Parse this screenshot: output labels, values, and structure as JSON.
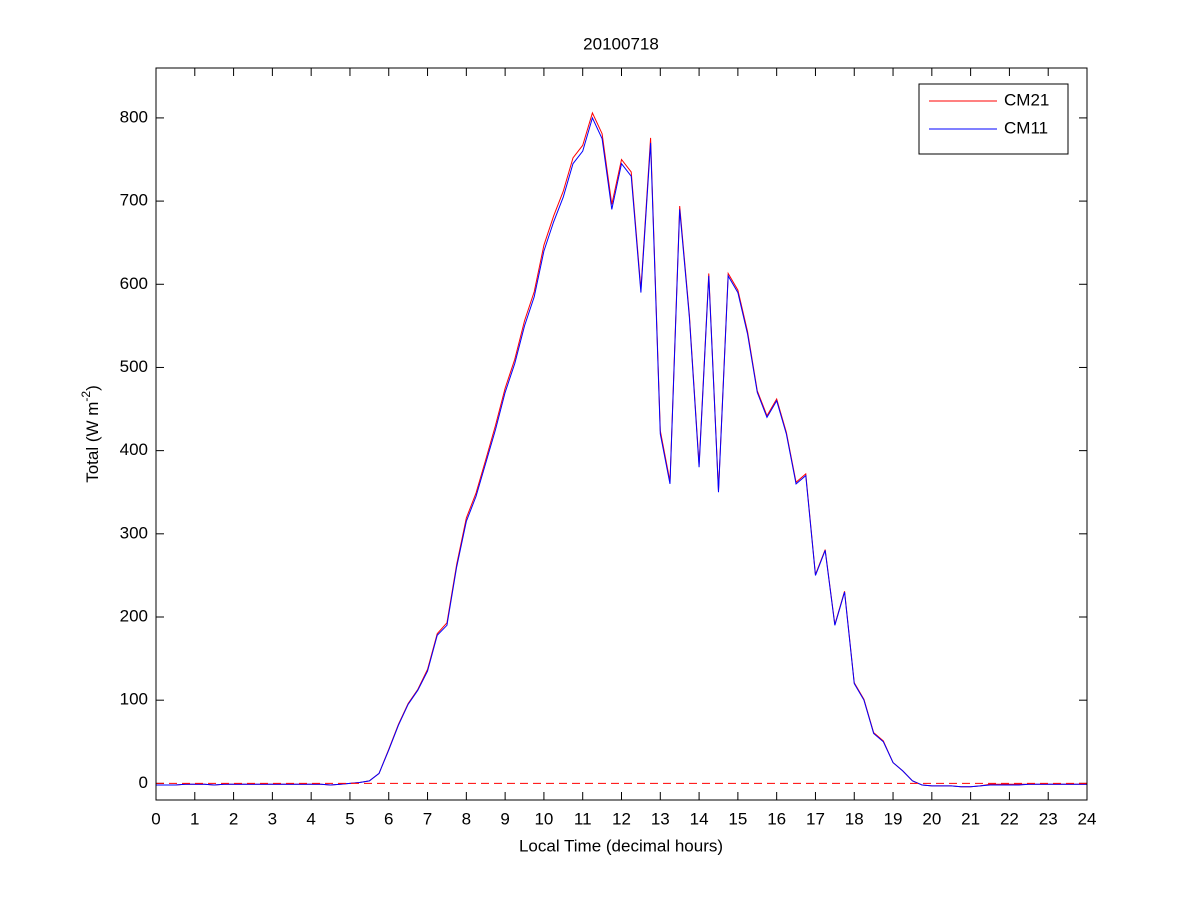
{
  "chart_data": {
    "type": "line",
    "title": "20100718",
    "xlabel": "Local Time (decimal hours)",
    "ylabel": [
      "Total (W m",
      "-2",
      ")"
    ],
    "x": [
      0,
      0.25,
      0.5,
      0.75,
      1,
      1.25,
      1.5,
      1.75,
      2,
      2.25,
      2.5,
      2.75,
      3,
      3.25,
      3.5,
      3.75,
      4,
      4.25,
      4.5,
      4.75,
      5,
      5.25,
      5.5,
      5.75,
      6,
      6.25,
      6.5,
      6.75,
      7,
      7.25,
      7.5,
      7.75,
      8,
      8.25,
      8.5,
      8.75,
      9,
      9.25,
      9.5,
      9.75,
      10,
      10.25,
      10.5,
      10.75,
      11,
      11.25,
      11.5,
      11.75,
      12,
      12.25,
      12.5,
      12.75,
      13,
      13.25,
      13.5,
      13.75,
      14,
      14.25,
      14.5,
      14.75,
      15,
      15.25,
      15.5,
      15.75,
      16,
      16.25,
      16.5,
      16.75,
      17,
      17.25,
      17.5,
      17.75,
      18,
      18.25,
      18.5,
      18.75,
      19,
      19.25,
      19.5,
      19.75,
      20,
      20.25,
      20.5,
      20.75,
      21,
      21.25,
      21.5,
      21.75,
      22,
      22.25,
      22.5,
      22.75,
      23,
      23.25,
      23.5,
      23.75,
      24
    ],
    "series": [
      {
        "name": "CM21",
        "color": "#ff0000",
        "values": [
          -2,
          -2,
          -2,
          -1,
          -1,
          -1,
          -2,
          -1,
          -1,
          -1,
          -1,
          -1,
          -1,
          -1,
          -1,
          -1,
          -1,
          -1,
          -2,
          -1,
          0,
          1,
          3,
          12,
          41,
          71,
          96,
          113,
          137,
          180,
          193,
          263,
          319,
          349,
          389,
          430,
          475,
          510,
          556,
          591,
          647,
          682,
          712,
          752,
          767,
          806,
          781,
          696,
          750,
          735,
          594,
          776,
          424,
          363,
          694,
          563,
          383,
          613,
          352,
          613,
          593,
          543,
          472,
          442,
          462,
          422,
          362,
          372,
          251,
          281,
          191,
          231,
          121,
          101,
          61,
          51,
          25,
          15,
          3,
          -2,
          -3,
          -3,
          -3,
          -4,
          -4,
          -3,
          -1,
          -1,
          -1,
          -1,
          -1,
          -1,
          -1,
          -1,
          -1,
          -1,
          -1
        ]
      },
      {
        "name": "CM11",
        "color": "#0000ff",
        "values": [
          -2,
          -2,
          -2,
          -1,
          -1,
          -1,
          -2,
          -1,
          -1,
          -1,
          -1,
          -1,
          -1,
          -1,
          -1,
          -1,
          -1,
          -1,
          -2,
          -1,
          0,
          1,
          3,
          12,
          40,
          70,
          95,
          112,
          135,
          178,
          190,
          260,
          315,
          345,
          385,
          425,
          470,
          505,
          550,
          585,
          640,
          675,
          705,
          745,
          760,
          800,
          775,
          690,
          745,
          730,
          590,
          770,
          420,
          360,
          690,
          560,
          380,
          610,
          350,
          610,
          590,
          540,
          470,
          440,
          460,
          420,
          360,
          370,
          250,
          280,
          190,
          230,
          120,
          100,
          60,
          50,
          25,
          15,
          3,
          -2,
          -3,
          -3,
          -3,
          -4,
          -4,
          -3,
          -2,
          -2,
          -2,
          -2,
          -1,
          -1,
          -1,
          -1,
          -1,
          -1,
          -1
        ]
      }
    ],
    "xlim": [
      0,
      24
    ],
    "xticks": [
      0,
      1,
      2,
      3,
      4,
      5,
      6,
      7,
      8,
      9,
      10,
      11,
      12,
      13,
      14,
      15,
      16,
      17,
      18,
      19,
      20,
      21,
      22,
      23,
      24
    ],
    "ylim": [
      -20,
      860
    ],
    "yticks": [
      0,
      100,
      200,
      300,
      400,
      500,
      600,
      700,
      800
    ],
    "reference_line": {
      "value": 0,
      "color": "#ff0000",
      "dashed": true
    },
    "grid": false,
    "legend": "northeast"
  }
}
